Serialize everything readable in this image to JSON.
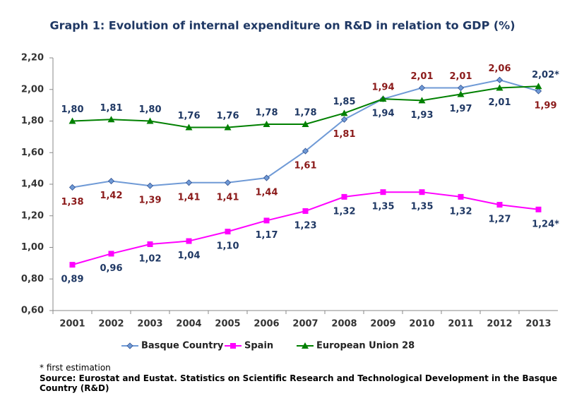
{
  "chart_data": {
    "type": "line",
    "title": "Graph 1: Evolution of internal expenditure on R&D in relation to GDP (%)",
    "categories": [
      "2001",
      "2002",
      "2003",
      "2004",
      "2005",
      "2006",
      "2007",
      "2008",
      "2009",
      "2010",
      "2011",
      "2012",
      "2013"
    ],
    "series": [
      {
        "name": "Basque Country",
        "color": "#6f9ad6",
        "label_color": "#8b1a1a",
        "marker": "diamond",
        "values": [
          1.38,
          1.42,
          1.39,
          1.41,
          1.41,
          1.44,
          1.61,
          1.81,
          1.94,
          2.01,
          2.01,
          2.06,
          1.99
        ],
        "value_labels": [
          "1,38",
          "1,42",
          "1,39",
          "1,41",
          "1,41",
          "1,44",
          "1,61",
          "1,81",
          "1,94",
          "2,01",
          "2,01",
          "2,06",
          "1,99"
        ]
      },
      {
        "name": "Spain",
        "color": "#ff00ff",
        "label_color": "#1f3864",
        "marker": "square",
        "values": [
          0.89,
          0.96,
          1.02,
          1.04,
          1.1,
          1.17,
          1.23,
          1.32,
          1.35,
          1.35,
          1.32,
          1.27,
          1.24
        ],
        "value_labels": [
          "0,89",
          "0,96",
          "1,02",
          "1,04",
          "1,10",
          "1,17",
          "1,23",
          "1,32",
          "1,35",
          "1,35",
          "1,32",
          "1,27",
          "1,24*"
        ]
      },
      {
        "name": "European Union 28",
        "color": "#008000",
        "label_color": "#1f3864",
        "marker": "triangle",
        "values": [
          1.8,
          1.81,
          1.8,
          1.76,
          1.76,
          1.78,
          1.78,
          1.85,
          1.94,
          1.93,
          1.97,
          2.01,
          2.02
        ],
        "value_labels": [
          "1,80",
          "1,81",
          "1,80",
          "1,76",
          "1,76",
          "1,78",
          "1,78",
          "1,85",
          "1,94",
          "1,93",
          "1,97",
          "2,01",
          "2,02*"
        ]
      }
    ],
    "ylim": [
      0.6,
      2.2
    ],
    "yticks": [
      {
        "value": 0.6,
        "label": "0,60"
      },
      {
        "value": 0.8,
        "label": "0,80"
      },
      {
        "value": 1.0,
        "label": "1,00"
      },
      {
        "value": 1.2,
        "label": "1,20"
      },
      {
        "value": 1.4,
        "label": "1,40"
      },
      {
        "value": 1.6,
        "label": "1,60"
      },
      {
        "value": 1.8,
        "label": "1,80"
      },
      {
        "value": 2.0,
        "label": "2,00"
      },
      {
        "value": 2.2,
        "label": "2,20"
      }
    ],
    "grid": false,
    "legend": "bottom",
    "footnote": "* first estimation",
    "source": "Source: Eurostat and Eustat. Statistics on Scientific Research and Technological Development in the Basque Country (R&D)"
  }
}
